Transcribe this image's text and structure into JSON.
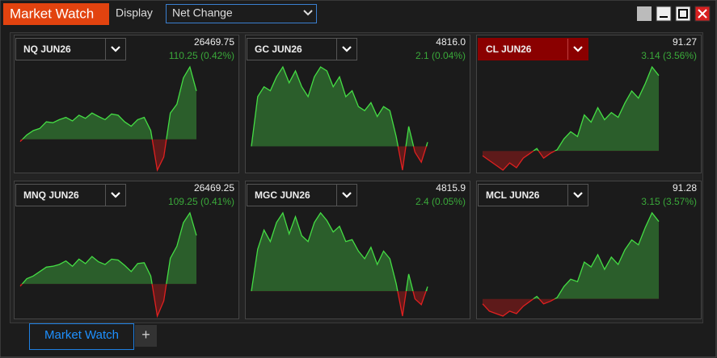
{
  "header": {
    "title": "Market Watch",
    "display_label": "Display",
    "display_value": "Net Change"
  },
  "panels": [
    {
      "symbol": "NQ JUN26",
      "price": "26469.75",
      "change": "110.25 (0.42%)",
      "highlight": false,
      "sparkline": [
        -5,
        10,
        20,
        25,
        40,
        38,
        45,
        50,
        42,
        55,
        48,
        60,
        52,
        45,
        58,
        55,
        40,
        30,
        45,
        50,
        20,
        -70,
        -40,
        60,
        80,
        140,
        165,
        110.25
      ]
    },
    {
      "symbol": "GC JUN26",
      "price": "4816.0",
      "change": "2.1 (0.04%)",
      "highlight": false,
      "sparkline": [
        0,
        25,
        30,
        28,
        35,
        40,
        32,
        38,
        30,
        25,
        35,
        40,
        38,
        30,
        35,
        25,
        28,
        20,
        18,
        22,
        15,
        20,
        18,
        5,
        -12,
        10,
        -3,
        -8,
        2.1
      ]
    },
    {
      "symbol": "CL JUN26",
      "price": "91.27",
      "change": "3.14 (3.56%)",
      "highlight": true,
      "sparkline": [
        -0.2,
        -0.4,
        -0.6,
        -0.8,
        -0.5,
        -0.7,
        -0.3,
        -0.1,
        0.1,
        -0.3,
        -0.1,
        0.05,
        0.5,
        0.8,
        0.6,
        1.5,
        1.2,
        1.8,
        1.3,
        1.6,
        1.4,
        2.0,
        2.5,
        2.2,
        2.8,
        3.5,
        3.14
      ]
    },
    {
      "symbol": "MNQ JUN26",
      "price": "26469.25",
      "change": "109.25 (0.41%)",
      "highlight": false,
      "sparkline": [
        -5,
        12,
        18,
        28,
        38,
        40,
        44,
        52,
        40,
        56,
        46,
        62,
        50,
        44,
        56,
        54,
        42,
        28,
        46,
        48,
        18,
        -72,
        -38,
        58,
        85,
        138,
        160,
        109.25
      ]
    },
    {
      "symbol": "MGC JUN26",
      "price": "4815.9",
      "change": "2.4 (0.05%)",
      "highlight": false,
      "sparkline": [
        0,
        22,
        32,
        26,
        36,
        41,
        30,
        39,
        29,
        26,
        36,
        41,
        37,
        31,
        34,
        26,
        27,
        21,
        17,
        23,
        14,
        21,
        17,
        4,
        -13,
        9,
        -4,
        -7,
        2.4
      ]
    },
    {
      "symbol": "MCL JUN26",
      "price": "91.28",
      "change": "3.15 (3.57%)",
      "highlight": false,
      "sparkline": [
        -0.2,
        -0.5,
        -0.6,
        -0.7,
        -0.5,
        -0.6,
        -0.3,
        -0.1,
        0.1,
        -0.2,
        -0.1,
        0.05,
        0.5,
        0.8,
        0.7,
        1.5,
        1.3,
        1.8,
        1.2,
        1.7,
        1.4,
        2.0,
        2.4,
        2.2,
        2.9,
        3.5,
        3.15
      ]
    }
  ],
  "tabs": [
    "Market Watch"
  ],
  "add_tab": "+"
}
